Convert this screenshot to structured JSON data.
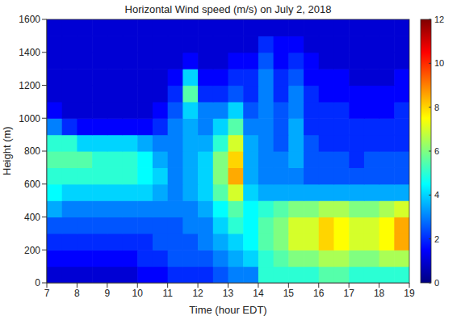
{
  "chart_data": {
    "type": "heatmap",
    "title": "Horizontal Wind speed (m/s) on July 2, 2018",
    "x_label": "Time (hour EDT)",
    "y_label": "Height (m)",
    "xlim": [
      7,
      19
    ],
    "xticks": [
      7,
      8,
      9,
      10,
      11,
      12,
      13,
      14,
      15,
      16,
      17,
      18,
      19
    ],
    "ylim": [
      0,
      1600
    ],
    "yticks": [
      0,
      200,
      400,
      600,
      800,
      1000,
      1200,
      1400,
      1600
    ],
    "x": [
      7.25,
      7.75,
      8.25,
      8.75,
      9.25,
      9.75,
      10.25,
      10.75,
      11.25,
      11.75,
      12.25,
      12.75,
      13.25,
      13.75,
      14.25,
      14.75,
      15.25,
      15.75,
      16.25,
      16.75,
      17.25,
      17.75,
      18.25,
      18.75
    ],
    "y": [
      50,
      150,
      250,
      350,
      450,
      550,
      650,
      750,
      850,
      950,
      1050,
      1150,
      1250,
      1350,
      1450,
      1550
    ],
    "values": [
      [
        1,
        1,
        1,
        1,
        1,
        1,
        1.5,
        1.5,
        2,
        2,
        2,
        2.5,
        3,
        3,
        5,
        5,
        5,
        5,
        5.5,
        5.5,
        5,
        5,
        5,
        5
      ],
      [
        1.5,
        1.5,
        1.5,
        1.5,
        1.5,
        1.5,
        2,
        2,
        2.5,
        2.5,
        2.5,
        3,
        3.5,
        4,
        5,
        5.5,
        6,
        6,
        6.5,
        6.5,
        6,
        6,
        6.5,
        6.5
      ],
      [
        2,
        2,
        2,
        2,
        2,
        2,
        2,
        2.5,
        2.5,
        2.5,
        3,
        3.5,
        4,
        4.5,
        5.5,
        6,
        7,
        7,
        8,
        7.5,
        7,
        7,
        7.5,
        8.5
      ],
      [
        2.5,
        2.5,
        2.5,
        2.5,
        2.5,
        2.5,
        2.5,
        2.5,
        2.5,
        3,
        3,
        4,
        5,
        4.5,
        5.5,
        6,
        7,
        7,
        8,
        7.5,
        7,
        7,
        7.5,
        8.5
      ],
      [
        3.5,
        3,
        3,
        3,
        3,
        3,
        3,
        3,
        3,
        3,
        3.5,
        4.5,
        5.5,
        4.5,
        5,
        5.5,
        6,
        6,
        6.5,
        6.5,
        6,
        6,
        6.5,
        7
      ],
      [
        4.5,
        4,
        4,
        4,
        4,
        4,
        4,
        3.5,
        3,
        3.5,
        4,
        5.5,
        7,
        4,
        3.5,
        3.5,
        3.5,
        3.5,
        3.5,
        3.5,
        3.5,
        3.5,
        3.5,
        3.5
      ],
      [
        5,
        5,
        5,
        5,
        5,
        5,
        4.5,
        4,
        3,
        3.5,
        4,
        6,
        8.5,
        3.5,
        3,
        3,
        3,
        2.5,
        2.5,
        2.5,
        2.5,
        2.5,
        2.5,
        2.5
      ],
      [
        5.5,
        5.5,
        5.5,
        5,
        5,
        5,
        4.5,
        3.5,
        3,
        3.5,
        4,
        6,
        8,
        3.5,
        3,
        3,
        3.5,
        2.5,
        2.5,
        2.5,
        2,
        2.5,
        2.5,
        2.5
      ],
      [
        5,
        5,
        4,
        4,
        4,
        4,
        3.5,
        3,
        3,
        3.5,
        3.5,
        5,
        7,
        3.5,
        3,
        2.5,
        3.5,
        2.5,
        2,
        2,
        2,
        2,
        2,
        2
      ],
      [
        3,
        2,
        1.5,
        1.5,
        1.5,
        1.5,
        1.5,
        2,
        3,
        3.5,
        3,
        4,
        5.5,
        3,
        3,
        2.5,
        3.5,
        2,
        2,
        2,
        2,
        2,
        2,
        2
      ],
      [
        1.5,
        1,
        1,
        1,
        1,
        1,
        1,
        1.5,
        2.5,
        4,
        3,
        3,
        4,
        2.5,
        3,
        2.5,
        3,
        2,
        2,
        2,
        1.5,
        1.5,
        1.5,
        2
      ],
      [
        1,
        1,
        1,
        1,
        1,
        1,
        1,
        1,
        2,
        5.5,
        2,
        2,
        2.5,
        2,
        3,
        2,
        3,
        2,
        1.5,
        1.5,
        1.5,
        1.5,
        1.5,
        1.5
      ],
      [
        1,
        1,
        1,
        1,
        1,
        1,
        1,
        1,
        1.5,
        4,
        1.5,
        1.5,
        2,
        2,
        3,
        2,
        2.5,
        1.5,
        1.5,
        1.5,
        1,
        1,
        1,
        1.5
      ],
      [
        1,
        1,
        1,
        1,
        1,
        1,
        1,
        1,
        1,
        1.5,
        1,
        1,
        1.5,
        1.5,
        2.5,
        1.5,
        2,
        1.5,
        1,
        1,
        1,
        1,
        1,
        1
      ],
      [
        1,
        1,
        1,
        1,
        1,
        1,
        1,
        1,
        1,
        1,
        1,
        1,
        1,
        1,
        2,
        1.5,
        1.5,
        1,
        1,
        1,
        1,
        1,
        1,
        1
      ],
      [
        1,
        1,
        1,
        1,
        1,
        1,
        1,
        1,
        1,
        1,
        1,
        1,
        1,
        1,
        1,
        1,
        1,
        1,
        1,
        1,
        1,
        1,
        1,
        1
      ]
    ],
    "colorbar_range": [
      0,
      12
    ],
    "colorbar_ticks": [
      0,
      2,
      4,
      6,
      8,
      10,
      12
    ]
  }
}
